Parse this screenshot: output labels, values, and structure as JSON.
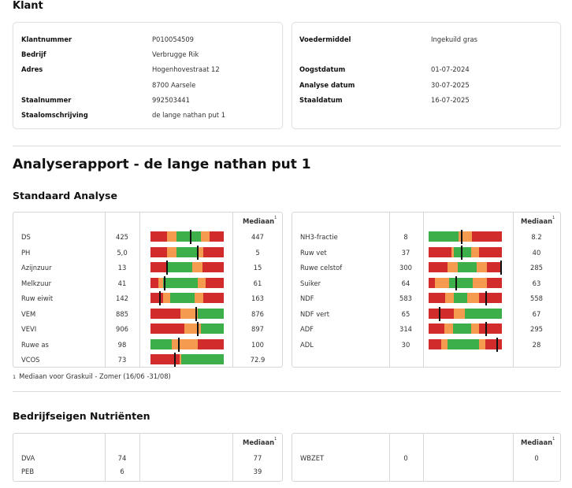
{
  "klant": {
    "heading": "Klant",
    "left": [
      {
        "label": "Klantnummer",
        "value": "P010054509"
      },
      {
        "label": "Bedrijf",
        "value": "Verbrugge Rik"
      },
      {
        "label": "Adres",
        "value": "Hogenhovestraat 12"
      },
      {
        "label": "",
        "value": "8700 Aarsele"
      },
      {
        "label": "Staalnummer",
        "value": "992503441"
      },
      {
        "label": "Staalomschrijving",
        "value": "de lange nathan put 1"
      }
    ],
    "right": [
      {
        "label": "Voedermiddel",
        "value": "Ingekuild gras"
      },
      {
        "label": "Oogstdatum",
        "value": "01-07-2024"
      },
      {
        "label": "Analyse datum",
        "value": "30-07-2025"
      },
      {
        "label": "Staaldatum",
        "value": "16-07-2025"
      }
    ]
  },
  "report": {
    "title": "Analyserapport - de lange nathan put 1",
    "standard_heading": "Standaard Analyse",
    "median_header": "Mediaan",
    "median_sup": "1",
    "footnote_num": "1",
    "footnote": "Mediaan voor Graskuil - Zomer (16/06 -31/08)",
    "nutrients_heading": "Bedrijfseigen Nutriënten"
  },
  "colors": {
    "red": "#d12b2b",
    "orange": "#f59b50",
    "green": "#3daf4a",
    "marker": "#111111"
  },
  "standard_left": [
    {
      "name": "DS",
      "value": "425",
      "median": "447",
      "segments": [
        [
          "red",
          0,
          23
        ],
        [
          "orange",
          23,
          35
        ],
        [
          "green",
          35,
          69
        ],
        [
          "orange",
          69,
          81
        ],
        [
          "red",
          81,
          100
        ]
      ],
      "marker": 55
    },
    {
      "name": "PH",
      "value": "5,0",
      "median": "5",
      "segments": [
        [
          "red",
          0,
          23
        ],
        [
          "orange",
          23,
          35
        ],
        [
          "green",
          35,
          66
        ],
        [
          "orange",
          66,
          72
        ],
        [
          "red",
          72,
          100
        ]
      ],
      "marker": 64
    },
    {
      "name": "Azijnzuur",
      "value": "13",
      "median": "15",
      "segments": [
        [
          "red",
          0,
          22
        ],
        [
          "orange",
          22,
          23
        ],
        [
          "green",
          23,
          57
        ],
        [
          "orange",
          57,
          71
        ],
        [
          "red",
          71,
          100
        ]
      ],
      "marker": 23
    },
    {
      "name": "Melkzuur",
      "value": "41",
      "median": "61",
      "segments": [
        [
          "red",
          0,
          11
        ],
        [
          "orange",
          11,
          17
        ],
        [
          "green",
          17,
          64
        ],
        [
          "orange",
          64,
          75
        ],
        [
          "red",
          75,
          100
        ]
      ],
      "marker": 19
    },
    {
      "name": "Ruw eiwit",
      "value": "142",
      "median": "163",
      "segments": [
        [
          "red",
          0,
          17
        ],
        [
          "orange",
          17,
          27
        ],
        [
          "green",
          27,
          60
        ],
        [
          "orange",
          60,
          72
        ],
        [
          "red",
          72,
          100
        ]
      ],
      "marker": 13
    },
    {
      "name": "VEM",
      "value": "885",
      "median": "876",
      "segments": [
        [
          "red",
          0,
          41
        ],
        [
          "orange",
          41,
          65
        ],
        [
          "green",
          65,
          100
        ]
      ],
      "marker": 62
    },
    {
      "name": "VEVI",
      "value": "906",
      "median": "897",
      "segments": [
        [
          "red",
          0,
          46
        ],
        [
          "orange",
          46,
          69
        ],
        [
          "green",
          69,
          100
        ]
      ],
      "marker": 64
    },
    {
      "name": "Ruwe as",
      "value": "98",
      "median": "100",
      "segments": [
        [
          "green",
          0,
          29
        ],
        [
          "orange",
          29,
          64
        ],
        [
          "red",
          64,
          100
        ]
      ],
      "marker": 39
    },
    {
      "name": "VCOS",
      "value": "73",
      "median": "72.9",
      "segments": [
        [
          "red",
          0,
          40
        ],
        [
          "orange",
          40,
          42
        ],
        [
          "green",
          42,
          100
        ]
      ],
      "marker": 33
    }
  ],
  "standard_right": [
    {
      "name": "NH3-fractie",
      "value": "8",
      "median": "8.2",
      "segments": [
        [
          "green",
          0,
          41
        ],
        [
          "orange",
          41,
          59
        ],
        [
          "red",
          59,
          100
        ]
      ],
      "marker": 45
    },
    {
      "name": "Ruw vet",
      "value": "37",
      "median": "40",
      "segments": [
        [
          "red",
          0,
          31
        ],
        [
          "orange",
          31,
          34
        ],
        [
          "green",
          34,
          58
        ],
        [
          "orange",
          58,
          69
        ],
        [
          "red",
          69,
          100
        ]
      ],
      "marker": 45
    },
    {
      "name": "Ruwe celstof",
      "value": "300",
      "median": "285",
      "segments": [
        [
          "red",
          0,
          26
        ],
        [
          "orange",
          26,
          40
        ],
        [
          "green",
          40,
          66
        ],
        [
          "orange",
          66,
          80
        ],
        [
          "red",
          80,
          100
        ]
      ],
      "marker": 99
    },
    {
      "name": "Suiker",
      "value": "64",
      "median": "63",
      "segments": [
        [
          "red",
          0,
          9
        ],
        [
          "orange",
          9,
          28
        ],
        [
          "green",
          28,
          60
        ],
        [
          "orange",
          60,
          80
        ],
        [
          "red",
          80,
          100
        ]
      ],
      "marker": 38
    },
    {
      "name": "NDF",
      "value": "583",
      "median": "558",
      "segments": [
        [
          "red",
          0,
          23
        ],
        [
          "orange",
          23,
          34
        ],
        [
          "green",
          34,
          53
        ],
        [
          "orange",
          53,
          69
        ],
        [
          "red",
          69,
          100
        ]
      ],
      "marker": 79
    },
    {
      "name": "NDF vert",
      "value": "65",
      "median": "67",
      "segments": [
        [
          "red",
          0,
          34
        ],
        [
          "orange",
          34,
          49
        ],
        [
          "green",
          49,
          100
        ]
      ],
      "marker": 15
    },
    {
      "name": "ADF",
      "value": "314",
      "median": "295",
      "segments": [
        [
          "red",
          0,
          21
        ],
        [
          "orange",
          21,
          33
        ],
        [
          "green",
          33,
          58
        ],
        [
          "orange",
          58,
          69
        ],
        [
          "red",
          69,
          100
        ]
      ],
      "marker": 78
    },
    {
      "name": "ADL",
      "value": "30",
      "median": "28",
      "segments": [
        [
          "red",
          0,
          17
        ],
        [
          "orange",
          17,
          26
        ],
        [
          "green",
          26,
          69
        ],
        [
          "orange",
          69,
          77
        ],
        [
          "red",
          77,
          100
        ]
      ],
      "marker": 94
    }
  ],
  "nutrients_left": [
    {
      "name": "DVA",
      "value": "74",
      "median": "77"
    },
    {
      "name": "PEB",
      "value": "6",
      "median": "39"
    }
  ],
  "nutrients_right": [
    {
      "name": "WBZET",
      "value": "0",
      "median": "0"
    }
  ]
}
